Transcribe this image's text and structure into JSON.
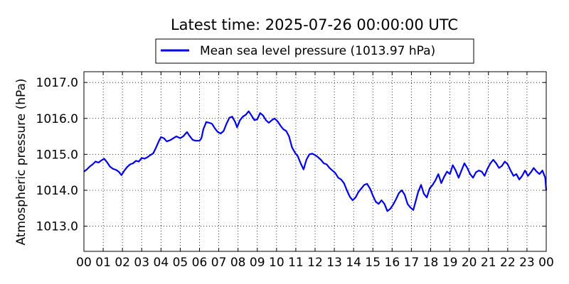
{
  "chart_data": {
    "type": "line",
    "title": "Latest time: 2025-07-26 00:00:00 UTC",
    "ylabel": "Atmospheric pressure (hPa)",
    "xlabel": "",
    "ylim": [
      1012.3,
      1017.3
    ],
    "yticks": [
      1013.0,
      1014.0,
      1015.0,
      1016.0,
      1017.0
    ],
    "ytick_labels": [
      "1013.0",
      "1014.0",
      "1015.0",
      "1016.0",
      "1017.0"
    ],
    "xlim": [
      0,
      24
    ],
    "xtick_labels": [
      "00",
      "01",
      "02",
      "03",
      "04",
      "05",
      "06",
      "07",
      "08",
      "09",
      "10",
      "11",
      "12",
      "13",
      "14",
      "15",
      "16",
      "17",
      "18",
      "19",
      "20",
      "21",
      "22",
      "23",
      "00"
    ],
    "grid": true,
    "legend_placement": "top-center",
    "series": [
      {
        "name": "Mean sea level pressure (1013.97 hPa)",
        "color": "#0000ee",
        "points": [
          [
            0.0,
            1014.52
          ],
          [
            0.15,
            1014.58
          ],
          [
            0.3,
            1014.66
          ],
          [
            0.45,
            1014.72
          ],
          [
            0.6,
            1014.8
          ],
          [
            0.75,
            1014.77
          ],
          [
            0.9,
            1014.83
          ],
          [
            1.05,
            1014.88
          ],
          [
            1.2,
            1014.78
          ],
          [
            1.35,
            1014.66
          ],
          [
            1.5,
            1014.6
          ],
          [
            1.65,
            1014.57
          ],
          [
            1.8,
            1014.52
          ],
          [
            1.95,
            1014.42
          ],
          [
            2.1,
            1014.55
          ],
          [
            2.25,
            1014.65
          ],
          [
            2.4,
            1014.72
          ],
          [
            2.55,
            1014.75
          ],
          [
            2.7,
            1014.82
          ],
          [
            2.85,
            1014.8
          ],
          [
            3.0,
            1014.9
          ],
          [
            3.15,
            1014.88
          ],
          [
            3.3,
            1014.92
          ],
          [
            3.45,
            1014.98
          ],
          [
            3.6,
            1015.03
          ],
          [
            3.75,
            1015.2
          ],
          [
            3.9,
            1015.38
          ],
          [
            4.0,
            1015.48
          ],
          [
            4.15,
            1015.45
          ],
          [
            4.3,
            1015.36
          ],
          [
            4.5,
            1015.4
          ],
          [
            4.65,
            1015.45
          ],
          [
            4.8,
            1015.5
          ],
          [
            5.0,
            1015.45
          ],
          [
            5.15,
            1015.5
          ],
          [
            5.35,
            1015.62
          ],
          [
            5.5,
            1015.5
          ],
          [
            5.65,
            1015.4
          ],
          [
            5.8,
            1015.38
          ],
          [
            6.0,
            1015.38
          ],
          [
            6.1,
            1015.45
          ],
          [
            6.2,
            1015.7
          ],
          [
            6.35,
            1015.9
          ],
          [
            6.5,
            1015.88
          ],
          [
            6.65,
            1015.85
          ],
          [
            6.8,
            1015.72
          ],
          [
            6.95,
            1015.62
          ],
          [
            7.1,
            1015.58
          ],
          [
            7.25,
            1015.65
          ],
          [
            7.4,
            1015.85
          ],
          [
            7.55,
            1016.02
          ],
          [
            7.7,
            1016.05
          ],
          [
            7.85,
            1015.9
          ],
          [
            7.95,
            1015.75
          ],
          [
            8.1,
            1015.95
          ],
          [
            8.25,
            1016.05
          ],
          [
            8.4,
            1016.1
          ],
          [
            8.55,
            1016.2
          ],
          [
            8.7,
            1016.08
          ],
          [
            8.85,
            1015.95
          ],
          [
            9.0,
            1015.98
          ],
          [
            9.15,
            1016.15
          ],
          [
            9.3,
            1016.08
          ],
          [
            9.45,
            1015.95
          ],
          [
            9.6,
            1015.88
          ],
          [
            9.75,
            1015.95
          ],
          [
            9.9,
            1016.0
          ],
          [
            10.05,
            1015.92
          ],
          [
            10.2,
            1015.8
          ],
          [
            10.35,
            1015.7
          ],
          [
            10.5,
            1015.65
          ],
          [
            10.65,
            1015.5
          ],
          [
            10.8,
            1015.2
          ],
          [
            10.95,
            1015.05
          ],
          [
            11.1,
            1014.95
          ],
          [
            11.25,
            1014.75
          ],
          [
            11.4,
            1014.58
          ],
          [
            11.55,
            1014.85
          ],
          [
            11.7,
            1015.0
          ],
          [
            11.85,
            1015.02
          ],
          [
            12.0,
            1014.98
          ],
          [
            12.15,
            1014.92
          ],
          [
            12.3,
            1014.85
          ],
          [
            12.45,
            1014.75
          ],
          [
            12.6,
            1014.72
          ],
          [
            12.75,
            1014.62
          ],
          [
            12.9,
            1014.55
          ],
          [
            13.05,
            1014.48
          ],
          [
            13.2,
            1014.35
          ],
          [
            13.35,
            1014.3
          ],
          [
            13.5,
            1014.2
          ],
          [
            13.65,
            1014.0
          ],
          [
            13.8,
            1013.82
          ],
          [
            13.95,
            1013.72
          ],
          [
            14.1,
            1013.8
          ],
          [
            14.25,
            1013.95
          ],
          [
            14.4,
            1014.05
          ],
          [
            14.55,
            1014.15
          ],
          [
            14.7,
            1014.18
          ],
          [
            14.85,
            1014.05
          ],
          [
            15.0,
            1013.85
          ],
          [
            15.15,
            1013.68
          ],
          [
            15.3,
            1013.62
          ],
          [
            15.45,
            1013.72
          ],
          [
            15.6,
            1013.62
          ],
          [
            15.75,
            1013.42
          ],
          [
            15.9,
            1013.48
          ],
          [
            16.05,
            1013.6
          ],
          [
            16.2,
            1013.75
          ],
          [
            16.35,
            1013.92
          ],
          [
            16.5,
            1014.0
          ],
          [
            16.65,
            1013.88
          ],
          [
            16.8,
            1013.62
          ],
          [
            16.95,
            1013.52
          ],
          [
            17.1,
            1013.45
          ],
          [
            17.2,
            1013.65
          ],
          [
            17.35,
            1013.95
          ],
          [
            17.5,
            1014.15
          ],
          [
            17.65,
            1013.9
          ],
          [
            17.8,
            1013.8
          ],
          [
            17.95,
            1014.05
          ],
          [
            18.1,
            1014.15
          ],
          [
            18.25,
            1014.28
          ],
          [
            18.4,
            1014.45
          ],
          [
            18.55,
            1014.2
          ],
          [
            18.7,
            1014.38
          ],
          [
            18.85,
            1014.52
          ],
          [
            19.0,
            1014.45
          ],
          [
            19.15,
            1014.7
          ],
          [
            19.3,
            1014.55
          ],
          [
            19.45,
            1014.35
          ],
          [
            19.6,
            1014.55
          ],
          [
            19.75,
            1014.75
          ],
          [
            19.9,
            1014.62
          ],
          [
            20.05,
            1014.45
          ],
          [
            20.2,
            1014.35
          ],
          [
            20.35,
            1014.5
          ],
          [
            20.5,
            1014.55
          ],
          [
            20.65,
            1014.52
          ],
          [
            20.8,
            1014.4
          ],
          [
            20.95,
            1014.6
          ],
          [
            21.1,
            1014.75
          ],
          [
            21.25,
            1014.85
          ],
          [
            21.4,
            1014.75
          ],
          [
            21.55,
            1014.62
          ],
          [
            21.7,
            1014.68
          ],
          [
            21.85,
            1014.8
          ],
          [
            22.0,
            1014.72
          ],
          [
            22.15,
            1014.55
          ],
          [
            22.3,
            1014.4
          ],
          [
            22.45,
            1014.45
          ],
          [
            22.6,
            1014.3
          ],
          [
            22.75,
            1014.4
          ],
          [
            22.9,
            1014.55
          ],
          [
            23.05,
            1014.4
          ],
          [
            23.2,
            1014.5
          ],
          [
            23.35,
            1014.62
          ],
          [
            23.5,
            1014.52
          ],
          [
            23.65,
            1014.45
          ],
          [
            23.8,
            1014.55
          ],
          [
            23.95,
            1014.35
          ],
          [
            24.0,
            1014.0
          ]
        ]
      }
    ]
  }
}
